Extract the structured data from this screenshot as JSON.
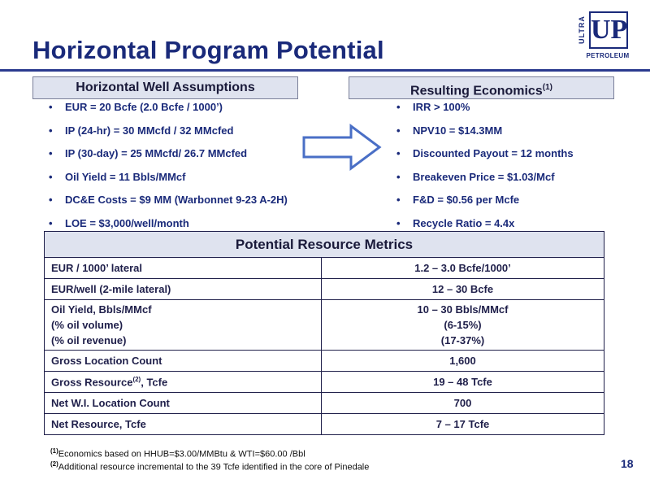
{
  "title": "Horizontal Program Potential",
  "logo": {
    "top_text": "ULTRA",
    "mark": "UP",
    "bottom_text": "PETROLEUM"
  },
  "assumptions": {
    "header": "Horizontal Well Assumptions",
    "items": [
      "EUR = 20 Bcfe  (2.0 Bcfe / 1000’)",
      "IP (24-hr) = 30 MMcfd / 32 MMcfed",
      "IP (30-day) = 25 MMcfd/ 26.7 MMcfed",
      "Oil Yield = 11 Bbls/MMcf",
      "DC&E Costs = $9 MM (Warbonnet 9-23 A-2H)",
      "LOE = $3,000/well/month"
    ]
  },
  "economics": {
    "header": "Resulting Economics",
    "header_note": "(1)",
    "items": [
      "IRR > 100%",
      "NPV10 = $14.3MM",
      "Discounted Payout = 12 months",
      "Breakeven Price =  $1.03/Mcf",
      "F&D = $0.56 per Mcfe",
      "Recycle Ratio = 4.4x"
    ]
  },
  "metrics": {
    "header": "Potential Resource Metrics",
    "rows": [
      {
        "label": "EUR / 1000’ lateral",
        "value": "1.2 – 3.0 Bcfe/1000’"
      },
      {
        "label": "EUR/well (2-mile lateral)",
        "value": "12 – 30 Bcfe"
      },
      {
        "label_lines": [
          "Oil Yield, Bbls/MMcf",
          "(% oil volume)",
          "(% oil revenue)"
        ],
        "value_lines": [
          "10 – 30 Bbls/MMcf",
          "(6-15%)",
          "(17-37%)"
        ]
      },
      {
        "label": "Gross Location Count",
        "value": "1,600"
      },
      {
        "label": "Gross Resource",
        "label_note": "(2)",
        "label_suffix": ", Tcfe",
        "value": "19 – 48 Tcfe"
      },
      {
        "label": "Net W.I. Location Count",
        "value": "700"
      },
      {
        "label": "Net Resource, Tcfe",
        "value": "7 – 17 Tcfe"
      }
    ]
  },
  "footnotes": [
    {
      "mark": "(1)",
      "text": "Economics based on HHUB=$3.00/MMBtu & WTI=$60.00 /Bbl"
    },
    {
      "mark": "(2)",
      "text": "Additional resource incremental to the 39 Tcfe identified in the core of Pinedale"
    }
  ],
  "page_number": "18",
  "colors": {
    "title": "#1a2a7a",
    "header_fill": "#dfe3ef",
    "arrow": "#4a6fc6"
  },
  "icons": {
    "arrow": "right-arrow-icon"
  }
}
